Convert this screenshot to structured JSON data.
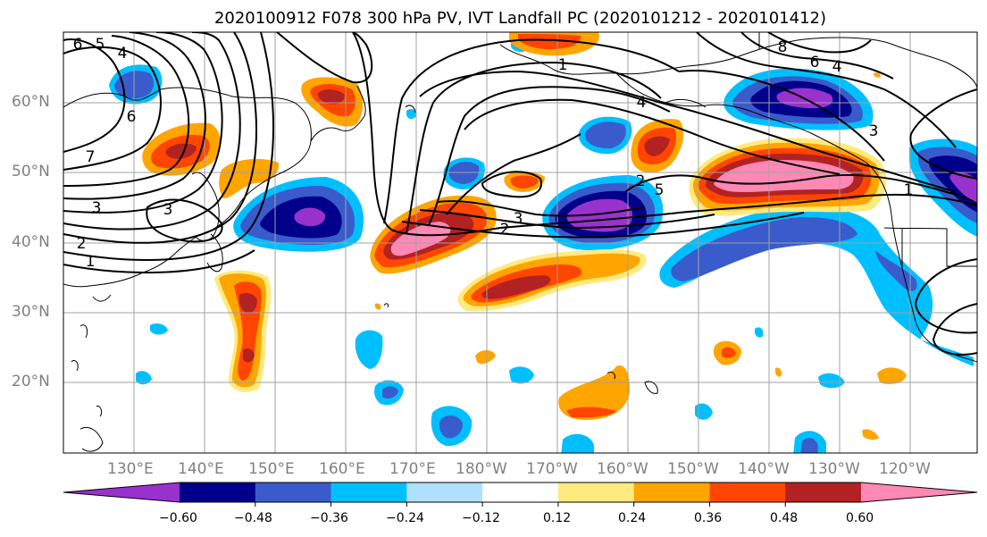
{
  "title": "2020100912 F078 300 hPa PV, IVT Landfall PC (2020101212 - 2020101412)",
  "map": {
    "lat_labels": [
      "60°N",
      "50°N",
      "40°N",
      "30°N",
      "20°N"
    ],
    "lon_labels": [
      "130°E",
      "140°E",
      "150°E",
      "160°E",
      "170°E",
      "180°W",
      "170°W",
      "160°W",
      "150°W",
      "140°W",
      "130°W",
      "120°W"
    ],
    "contour_labels": [
      "6",
      "5",
      "4",
      "6",
      "7",
      "3",
      "2",
      "1",
      "3",
      "2",
      "1",
      "4",
      "5",
      "3",
      "2",
      "8",
      "6",
      "4",
      "3",
      "1"
    ]
  },
  "colorbar": {
    "tick_labels": [
      "−0.60",
      "−0.48",
      "−0.36",
      "−0.24",
      "−0.12",
      "0.12",
      "0.24",
      "0.36",
      "0.48",
      "0.60"
    ],
    "colors": [
      "#9932CC",
      "#00008B",
      "#3A5BCB",
      "#00BFFF",
      "#B0E0FF",
      "#FFFFFF",
      "#FFEA80",
      "#FFA500",
      "#FF4500",
      "#B22222",
      "#FF88B4"
    ]
  }
}
